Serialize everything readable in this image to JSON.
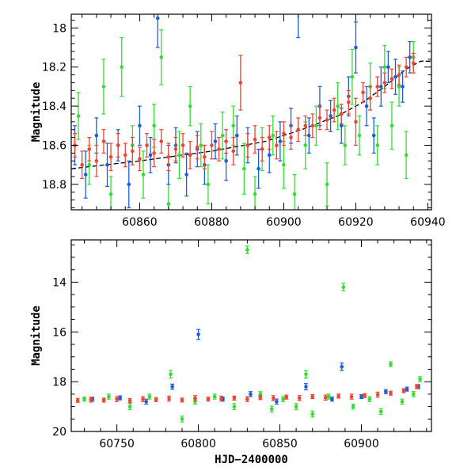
{
  "chart_data": [
    {
      "type": "scatter",
      "panel": "top",
      "title": "",
      "xlabel": "",
      "ylabel": "Magnitude",
      "xlim": [
        60841,
        60941
      ],
      "ylim": [
        18.93,
        17.93
      ],
      "y_inverted": true,
      "xticks": [
        60860,
        60880,
        60900,
        60920,
        60940
      ],
      "yticks": [
        18,
        18.2,
        18.4,
        18.6,
        18.8
      ],
      "grid": false,
      "legend": "none",
      "colors": {
        "green": "#33dd33",
        "blue": "#1a5fd6",
        "red": "#ee4433",
        "trend": "#000000"
      },
      "trend_line": {
        "x": [
          60841,
          60860,
          60880,
          60895,
          60905,
          60915,
          60922,
          60928,
          60934,
          60938,
          60941
        ],
        "y": [
          18.72,
          18.68,
          18.63,
          18.58,
          18.52,
          18.45,
          18.38,
          18.3,
          18.21,
          18.17,
          18.17
        ]
      },
      "series": [
        {
          "color": "green",
          "x": [
            60843,
            60846,
            60850,
            60852,
            60855,
            60858,
            60861,
            60864,
            60866,
            60868,
            60871,
            60874,
            60877,
            60879,
            60883,
            60886,
            60889,
            60892,
            60894,
            60897,
            60900,
            60903,
            60906,
            60909,
            60912,
            60915,
            60917,
            60919,
            60921,
            60924,
            60926,
            60928,
            60930,
            60932,
            60934,
            60936
          ],
          "y": [
            18.45,
            18.7,
            18.3,
            18.85,
            18.2,
            18.6,
            18.75,
            18.5,
            18.15,
            18.9,
            18.65,
            18.4,
            18.6,
            18.8,
            18.55,
            18.5,
            18.72,
            18.85,
            18.62,
            18.55,
            18.7,
            18.85,
            18.6,
            18.5,
            18.8,
            18.4,
            18.6,
            18.25,
            18.55,
            18.3,
            18.6,
            18.2,
            18.5,
            18.3,
            18.65,
            18.15
          ],
          "err": [
            0.12,
            0.1,
            0.14,
            0.09,
            0.15,
            0.1,
            0.12,
            0.11,
            0.14,
            0.1,
            0.12,
            0.1,
            0.11,
            0.1,
            0.12,
            0.1,
            0.13,
            0.09,
            0.11,
            0.1,
            0.12,
            0.1,
            0.12,
            0.1,
            0.11,
            0.12,
            0.1,
            0.14,
            0.1,
            0.12,
            0.1,
            0.11,
            0.12,
            0.1,
            0.12,
            0.08
          ]
        },
        {
          "color": "blue",
          "x": [
            60842,
            60845,
            60848,
            60851,
            60854,
            60857,
            60860,
            60863,
            60865,
            60868,
            60870,
            60873,
            60876,
            60878,
            60881,
            60884,
            60887,
            60890,
            60893,
            60896,
            60899,
            60902,
            60904,
            60907,
            60910,
            60913,
            60916,
            60918,
            60920,
            60923,
            60925,
            60927,
            60929,
            60931,
            60933,
            60935
          ],
          "y": [
            18.6,
            18.75,
            18.55,
            18.7,
            18.6,
            18.8,
            18.5,
            18.65,
            17.95,
            18.7,
            18.6,
            18.75,
            18.62,
            18.7,
            18.58,
            18.68,
            18.55,
            18.6,
            18.72,
            18.65,
            18.58,
            18.5,
            17.9,
            18.55,
            18.4,
            18.45,
            18.5,
            18.35,
            18.1,
            18.4,
            18.55,
            18.3,
            18.2,
            18.25,
            18.3,
            18.15
          ],
          "err": [
            0.1,
            0.12,
            0.09,
            0.11,
            0.08,
            0.12,
            0.1,
            0.09,
            0.15,
            0.1,
            0.09,
            0.11,
            0.09,
            0.1,
            0.09,
            0.1,
            0.1,
            0.09,
            0.1,
            0.09,
            0.1,
            0.09,
            0.15,
            0.09,
            0.1,
            0.08,
            0.09,
            0.1,
            0.13,
            0.1,
            0.09,
            0.1,
            0.08,
            0.09,
            0.08,
            0.08
          ]
        },
        {
          "color": "red",
          "x": [
            60842,
            60844,
            60846,
            60848,
            60850,
            60852,
            60854,
            60856,
            60858,
            60860,
            60862,
            60864,
            60866,
            60868,
            60870,
            60872,
            60874,
            60876,
            60878,
            60880,
            60882,
            60884,
            60886,
            60888,
            60890,
            60892,
            60894,
            60896,
            60898,
            60900,
            60902,
            60904,
            60906,
            60908,
            60910,
            60912,
            60914,
            60916,
            60918,
            60920,
            60922,
            60924,
            60926,
            60928,
            60930,
            60932,
            60934,
            60936
          ],
          "y": [
            18.6,
            18.7,
            18.62,
            18.68,
            18.58,
            18.66,
            18.6,
            18.65,
            18.63,
            18.67,
            18.6,
            18.64,
            18.58,
            18.66,
            18.62,
            18.6,
            18.65,
            18.61,
            18.66,
            18.6,
            18.62,
            18.58,
            18.63,
            18.28,
            18.6,
            18.57,
            18.62,
            18.56,
            18.6,
            18.54,
            18.56,
            18.52,
            18.5,
            18.5,
            18.46,
            18.47,
            18.42,
            18.44,
            18.38,
            18.48,
            18.33,
            18.36,
            18.3,
            18.28,
            18.26,
            18.24,
            18.2,
            18.18
          ],
          "err": [
            0.06,
            0.07,
            0.06,
            0.08,
            0.06,
            0.07,
            0.06,
            0.06,
            0.07,
            0.06,
            0.06,
            0.07,
            0.06,
            0.07,
            0.06,
            0.06,
            0.07,
            0.06,
            0.06,
            0.07,
            0.06,
            0.06,
            0.07,
            0.14,
            0.06,
            0.07,
            0.06,
            0.06,
            0.07,
            0.06,
            0.06,
            0.06,
            0.05,
            0.06,
            0.06,
            0.05,
            0.06,
            0.05,
            0.06,
            0.12,
            0.05,
            0.06,
            0.05,
            0.05,
            0.05,
            0.05,
            0.05,
            0.05
          ]
        }
      ]
    },
    {
      "type": "scatter",
      "panel": "bottom",
      "title": "",
      "xlabel": "HJD−2400000",
      "ylabel": "Magnitude",
      "xlim": [
        60722,
        60943
      ],
      "ylim": [
        20.0,
        12.3
      ],
      "y_inverted": true,
      "xticks": [
        60750,
        60800,
        60850,
        60900
      ],
      "yticks": [
        14,
        16,
        18,
        20
      ],
      "grid": false,
      "legend": "none",
      "colors": {
        "green": "#33dd33",
        "blue": "#1a5fd6",
        "red": "#ee4433"
      },
      "series": [
        {
          "color": "green",
          "x": [
            60730,
            60745,
            60758,
            60770,
            60783,
            60790,
            60798,
            60810,
            60822,
            60830,
            60838,
            60845,
            60852,
            60860,
            60866,
            60870,
            60880,
            60889,
            60895,
            60905,
            60912,
            60918,
            60925,
            60932,
            60936
          ],
          "y": [
            18.7,
            18.6,
            19.0,
            18.6,
            17.7,
            19.5,
            18.8,
            18.6,
            19.0,
            12.7,
            18.5,
            19.1,
            18.7,
            19.0,
            17.7,
            19.3,
            18.6,
            14.2,
            19.0,
            18.7,
            19.2,
            17.3,
            18.8,
            18.5,
            17.9
          ],
          "err": [
            0.08,
            0.1,
            0.12,
            0.1,
            0.15,
            0.12,
            0.1,
            0.1,
            0.12,
            0.15,
            0.1,
            0.12,
            0.1,
            0.12,
            0.15,
            0.12,
            0.1,
            0.15,
            0.1,
            0.1,
            0.12,
            0.1,
            0.1,
            0.1,
            0.1
          ]
        },
        {
          "color": "blue",
          "x": [
            60735,
            60752,
            60768,
            60784,
            60800,
            60815,
            60832,
            60848,
            60866,
            60882,
            60888,
            60900,
            60915,
            60928,
            60935
          ],
          "y": [
            18.7,
            18.65,
            18.8,
            18.2,
            16.1,
            18.7,
            18.5,
            18.8,
            18.2,
            18.7,
            17.4,
            18.6,
            18.4,
            18.3,
            18.2
          ],
          "err": [
            0.08,
            0.08,
            0.1,
            0.1,
            0.2,
            0.08,
            0.1,
            0.1,
            0.12,
            0.08,
            0.15,
            0.08,
            0.08,
            0.08,
            0.08
          ]
        },
        {
          "color": "red",
          "x": [
            60726,
            60734,
            60742,
            60750,
            60758,
            60766,
            60774,
            60782,
            60790,
            60798,
            60806,
            60814,
            60822,
            60830,
            60838,
            60846,
            60854,
            60862,
            60870,
            60878,
            60886,
            60894,
            60902,
            60910,
            60918,
            60926,
            60934
          ],
          "y": [
            18.75,
            18.72,
            18.74,
            18.7,
            18.76,
            18.7,
            18.72,
            18.68,
            18.74,
            18.66,
            18.7,
            18.68,
            18.66,
            18.7,
            18.64,
            18.66,
            18.62,
            18.66,
            18.6,
            18.64,
            18.58,
            18.6,
            18.56,
            18.52,
            18.46,
            18.36,
            18.2
          ],
          "err": [
            0.08,
            0.1,
            0.08,
            0.1,
            0.08,
            0.1,
            0.08,
            0.1,
            0.08,
            0.1,
            0.08,
            0.1,
            0.08,
            0.1,
            0.08,
            0.1,
            0.08,
            0.1,
            0.08,
            0.1,
            0.08,
            0.1,
            0.08,
            0.1,
            0.08,
            0.08,
            0.08
          ]
        }
      ]
    }
  ]
}
